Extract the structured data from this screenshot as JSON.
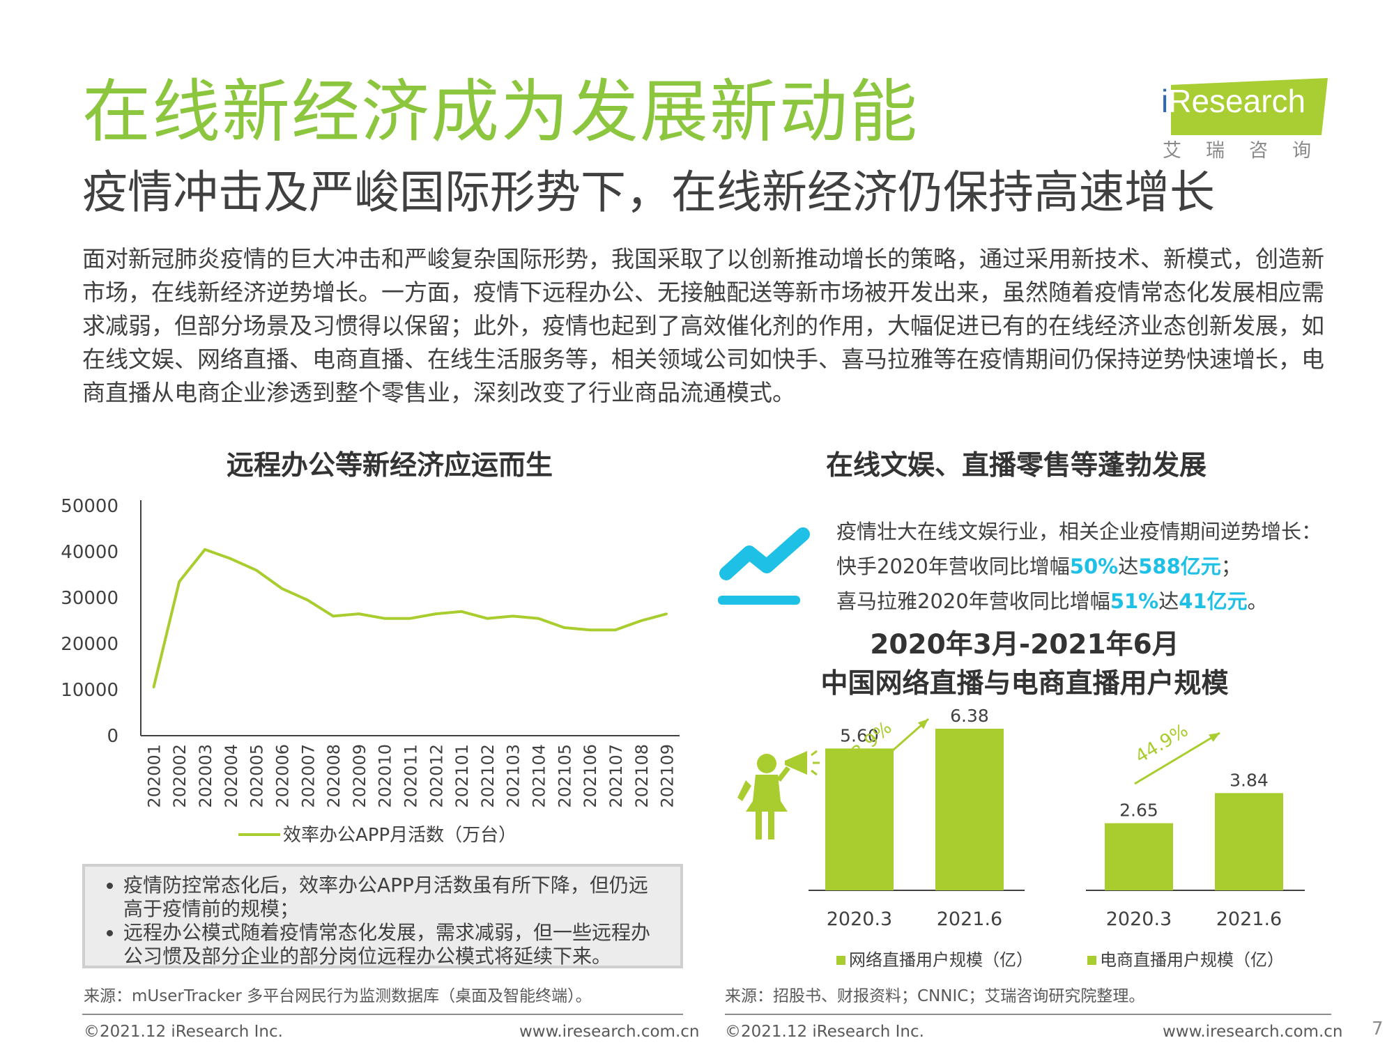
{
  "header": {
    "title": "在线新经济成为发展新动能",
    "subtitle": "疫情冲击及严峻国际形势下，在线新经济仍保持高速增长",
    "logo_text_i": "i",
    "logo_text": "Research",
    "logo_cn": "艾瑞咨询",
    "brand_color": "#8cc63f"
  },
  "intro": "面对新冠肺炎疫情的巨大冲击和严峻复杂国际形势，我国采取了以创新推动增长的策略，通过采用新技术、新模式，创造新市场，在线新经济逆势增长。一方面，疫情下远程办公、无接触配送等新市场被开发出来，虽然随着疫情常态化发展相应需求减弱，但部分场景及习惯得以保留；此外，疫情也起到了高效催化剂的作用，大幅促进已有的在线经济业态创新发展，如在线文娱、网络直播、电商直播、在线生活服务等，相关领域公司如快手、喜马拉雅等在疫情期间仍保持逆势快速增长，电商直播从电商企业渗透到整个零售业，深刻改变了行业商品流通模式。",
  "left": {
    "section_title": "远程办公等新经济应运而生",
    "notes": [
      "疫情防控常态化后，效率办公APP月活数虽有所下降，但仍远高于疫情前的规模；",
      "远程办公模式随着疫情常态化发展，需求减弱，但一些远程办公习惯及部分企业的部分岗位远程办公模式将延续下来。"
    ],
    "source": "来源：mUserTracker 多平台网民行为监测数据库（桌面及智能终端）。",
    "footer_left": "©2021.12 iResearch Inc.",
    "footer_right": "www.iresearch.com.cn"
  },
  "right": {
    "section_title": "在线文娱、直播零售等蓬勃发展",
    "fact_intro": "疫情壮大在线文娱行业，相关企业疫情期间逆势增长：",
    "fact1": {
      "pre": "快手2020年营收同比增幅",
      "pct": "50%",
      "mid": "达",
      "amount": "588亿元",
      "end": "；"
    },
    "fact2": {
      "pre": "喜马拉雅2020年营收同比增幅",
      "pct": "51%",
      "mid": "达",
      "amount": "41亿元",
      "end": "。"
    },
    "chart_title_1": "2020年3月-2021年6月",
    "chart_title_2": "中国网络直播与电商直播用户规模",
    "source": "来源：招股书、财报资料；CNNIC；艾瑞咨询研究院整理。",
    "footer_left": "©2021.12 iResearch Inc.",
    "footer_right": "www.iresearch.com.cn",
    "highlight_color": "#1ec0e6"
  },
  "page_number": "7",
  "chart_data": [
    {
      "type": "line",
      "title": "远程办公等新经济应运而生",
      "x": [
        "202001",
        "202002",
        "202003",
        "202004",
        "202005",
        "202006",
        "202007",
        "202008",
        "202009",
        "202010",
        "202011",
        "202012",
        "202101",
        "202102",
        "202103",
        "202104",
        "202105",
        "202106",
        "202107",
        "202108",
        "202109"
      ],
      "series": [
        {
          "name": "效率办公APP月活数（万台）",
          "color": "#a9cd2e",
          "values": [
            10500,
            33500,
            40500,
            38500,
            36000,
            32000,
            29500,
            26000,
            26500,
            25500,
            25500,
            26500,
            27000,
            25500,
            26000,
            25500,
            23500,
            23000,
            23000,
            25000,
            26500
          ]
        }
      ],
      "ylim": [
        0,
        50000
      ],
      "yticks": [
        "0",
        "10000",
        "20000",
        "30000",
        "40000",
        "50000"
      ],
      "legend": "bottom",
      "grid": false
    },
    {
      "type": "bar",
      "title": "中国网络直播与电商直播用户规模",
      "groups": [
        {
          "name": "网络直播用户规模（亿）",
          "categories": [
            "2020.3",
            "2021.6"
          ],
          "values": [
            5.6,
            6.38
          ],
          "labels": [
            "5.60",
            "6.38"
          ],
          "growth": "13.9%"
        },
        {
          "name": "电商直播用户规模（亿）",
          "categories": [
            "2020.3",
            "2021.6"
          ],
          "values": [
            2.65,
            3.84
          ],
          "labels": [
            "2.65",
            "3.84"
          ],
          "growth": "44.9%"
        }
      ],
      "color": "#a9cd2e",
      "legend": "bottom"
    }
  ]
}
